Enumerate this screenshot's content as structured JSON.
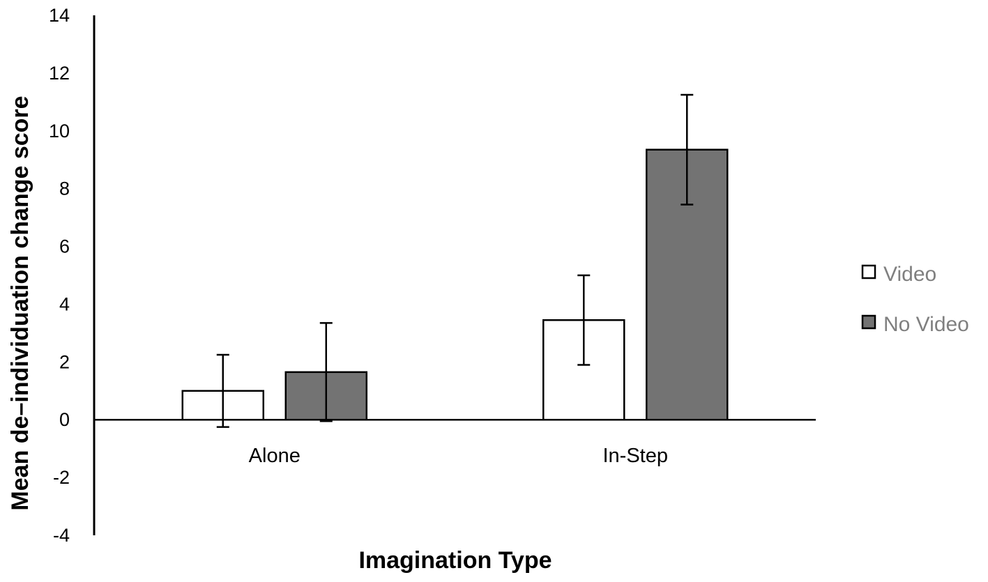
{
  "chart_data": {
    "type": "bar",
    "title": "",
    "xlabel": "Imagination Type",
    "ylabel": "Mean de–individuation change score",
    "categories": [
      "Alone",
      "In-Step"
    ],
    "series": [
      {
        "name": "Video",
        "values": [
          1.0,
          3.45
        ],
        "error": [
          1.25,
          1.55
        ],
        "color": "#ffffff"
      },
      {
        "name": "No Video",
        "values": [
          1.65,
          9.35
        ],
        "error": [
          1.7,
          1.9
        ],
        "color": "#737373"
      }
    ],
    "ylim": [
      -4,
      14
    ],
    "yticks": [
      -4,
      -2,
      0,
      2,
      4,
      6,
      8,
      10,
      12,
      14
    ],
    "grid": false,
    "legend_position": "right"
  }
}
